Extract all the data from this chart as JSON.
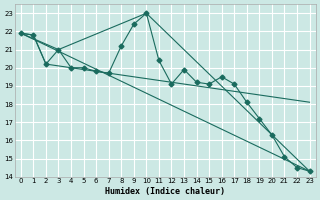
{
  "xlabel": "Humidex (Indice chaleur)",
  "bg_color": "#cce8e4",
  "grid_color": "#ffffff",
  "line_color": "#1a6b5e",
  "xlim": [
    -0.5,
    23.5
  ],
  "ylim": [
    14,
    23.5
  ],
  "yticks": [
    14,
    15,
    16,
    17,
    18,
    19,
    20,
    21,
    22,
    23
  ],
  "xticks": [
    0,
    1,
    2,
    3,
    4,
    5,
    6,
    7,
    8,
    9,
    10,
    11,
    12,
    13,
    14,
    15,
    16,
    17,
    18,
    19,
    20,
    21,
    22,
    23
  ],
  "series1_x": [
    0,
    1,
    2,
    3,
    4,
    5,
    6,
    7,
    8,
    9,
    10,
    11,
    12,
    13,
    14,
    15,
    16,
    17,
    18,
    19,
    20,
    21,
    22,
    23
  ],
  "series1_y": [
    21.9,
    21.8,
    20.2,
    21.0,
    20.0,
    20.0,
    19.8,
    19.7,
    21.2,
    22.4,
    23.0,
    20.4,
    19.1,
    19.9,
    19.2,
    19.1,
    19.5,
    19.1,
    18.1,
    17.2,
    16.3,
    15.1,
    14.5,
    14.3
  ],
  "series2_x": [
    0,
    23
  ],
  "series2_y": [
    21.9,
    14.3
  ],
  "series3_x": [
    0,
    1,
    2,
    3,
    4,
    5,
    6,
    7,
    8,
    9,
    10,
    11,
    12,
    13,
    14,
    15,
    16,
    17,
    18,
    19,
    20,
    21,
    22,
    23
  ],
  "series3_y": [
    21.9,
    21.8,
    20.2,
    20.1,
    20.0,
    19.9,
    19.8,
    19.7,
    19.6,
    19.5,
    19.4,
    19.3,
    19.2,
    19.1,
    19.0,
    18.9,
    18.8,
    18.7,
    18.6,
    18.5,
    18.4,
    18.3,
    18.2,
    18.1
  ],
  "series4_x": [
    0,
    3,
    10,
    23
  ],
  "series4_y": [
    21.9,
    21.0,
    23.0,
    14.3
  ]
}
